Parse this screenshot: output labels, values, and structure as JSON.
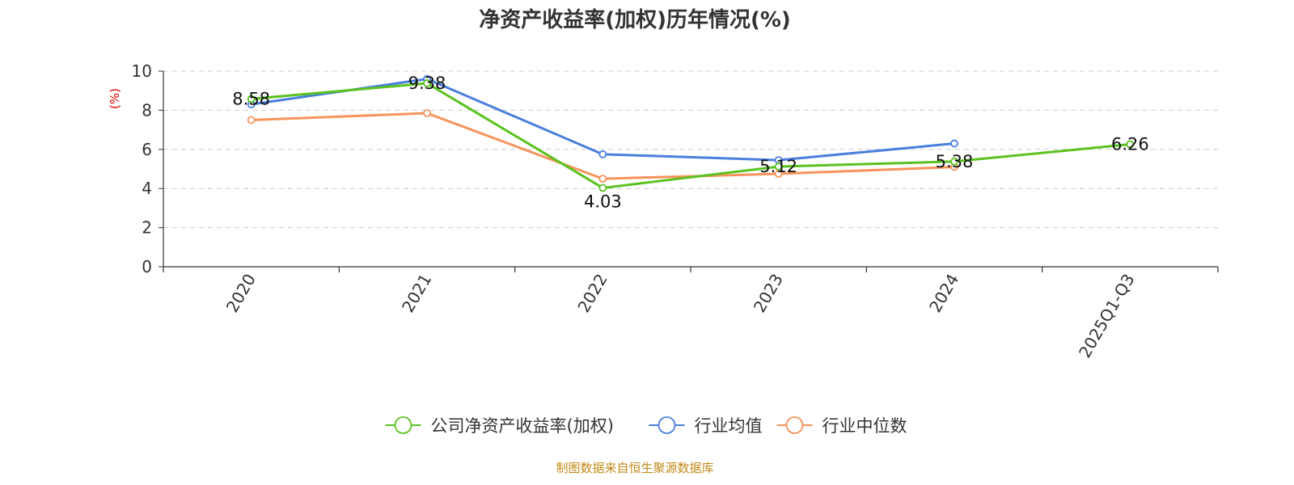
{
  "chart_data": {
    "type": "line",
    "title": "净资产收益率(加权)历年情况(%)",
    "ylabel": "(%)",
    "xlabel": "",
    "categories": [
      "2020",
      "2021",
      "2022",
      "2023",
      "2024",
      "2025Q1-Q3"
    ],
    "ylim": [
      0,
      10
    ],
    "yticks": [
      0,
      2,
      4,
      6,
      8,
      10
    ],
    "grid": true,
    "legend_position": "bottom",
    "series": [
      {
        "name": "公司净资产收益率(加权)",
        "color": "#5ac21f",
        "values": [
          8.58,
          9.38,
          4.03,
          5.12,
          5.38,
          6.26
        ],
        "labels": [
          "8.58",
          "9.38",
          "4.03",
          "5.12",
          "5.38",
          "6.26"
        ]
      },
      {
        "name": "行业均值",
        "color": "#4a7fdd",
        "values": [
          8.3,
          9.6,
          5.75,
          5.45,
          6.3,
          null
        ]
      },
      {
        "name": "行业中位数",
        "color": "#f7925a",
        "values": [
          7.5,
          7.85,
          4.5,
          4.75,
          5.1,
          null
        ]
      }
    ]
  },
  "source": "制图数据来自恒生聚源数据库"
}
